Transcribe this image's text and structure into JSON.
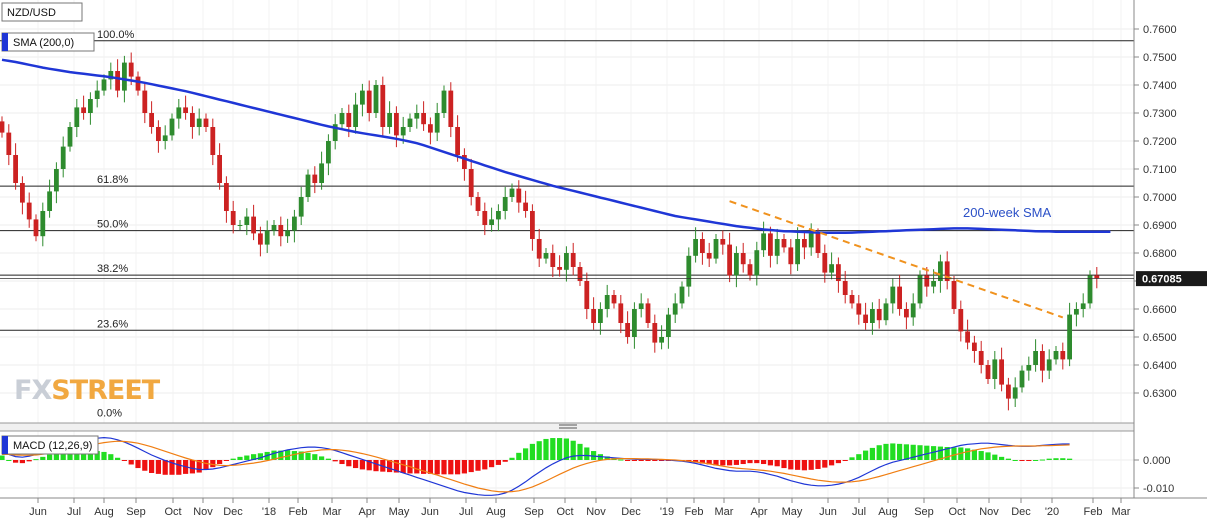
{
  "chart_data": {
    "type": "candlestick",
    "symbol": "NZD/USD",
    "sma_label": "SMA (200,0)",
    "sma_annotation": "200-week SMA",
    "macd_label": "MACD (12,26,9)",
    "current_price": "0.67085",
    "brand": "FXSTREET",
    "price_axis": {
      "ylim": [
        0.62,
        0.765
      ],
      "ticks": [
        "0.7600",
        "0.7500",
        "0.7400",
        "0.7300",
        "0.7200",
        "0.7100",
        "0.7000",
        "0.6900",
        "0.6800",
        "0.6700",
        "0.6600",
        "0.6500",
        "0.6400",
        "0.6300"
      ]
    },
    "macd_axis": {
      "ylim": [
        -0.014,
        0.01
      ],
      "ticks": [
        "0.000",
        "-0.010"
      ]
    },
    "x_ticks": [
      "Jun",
      "Jul",
      "Aug",
      "Sep",
      "Oct",
      "Nov",
      "Dec",
      "'18",
      "Feb",
      "Mar",
      "Apr",
      "May",
      "Jun",
      "Jul",
      "Aug",
      "Sep",
      "Oct",
      "Nov",
      "Dec",
      "'19",
      "Feb",
      "Mar",
      "Apr",
      "May",
      "Jun",
      "Jul",
      "Aug",
      "Sep",
      "Oct",
      "Nov",
      "Dec",
      "'20",
      "Feb",
      "Mar"
    ],
    "fib_levels": [
      {
        "label": "100.0%",
        "value": 0.7558
      },
      {
        "label": "61.8%",
        "value": 0.7039
      },
      {
        "label": "50.0%",
        "value": 0.688
      },
      {
        "label": "38.2%",
        "value": 0.6721
      },
      {
        "label": "23.6%",
        "value": 0.6524
      },
      {
        "label": "0.0%",
        "value": 0.6206
      }
    ],
    "trendline": {
      "from": {
        "week": 107,
        "value": 0.6985
      },
      "to": {
        "week": 156,
        "value": 0.657
      }
    },
    "closes": [
      0.723,
      0.715,
      0.705,
      0.698,
      0.692,
      0.686,
      0.695,
      0.702,
      0.71,
      0.718,
      0.725,
      0.732,
      0.73,
      0.735,
      0.738,
      0.742,
      0.745,
      0.738,
      0.748,
      0.743,
      0.738,
      0.73,
      0.725,
      0.72,
      0.722,
      0.728,
      0.732,
      0.73,
      0.725,
      0.728,
      0.725,
      0.715,
      0.705,
      0.695,
      0.69,
      0.69,
      0.693,
      0.687,
      0.683,
      0.688,
      0.69,
      0.686,
      0.688,
      0.693,
      0.7,
      0.708,
      0.705,
      0.712,
      0.72,
      0.726,
      0.73,
      0.725,
      0.733,
      0.738,
      0.73,
      0.74,
      0.725,
      0.73,
      0.722,
      0.725,
      0.728,
      0.73,
      0.726,
      0.723,
      0.73,
      0.738,
      0.725,
      0.715,
      0.71,
      0.7,
      0.695,
      0.69,
      0.692,
      0.695,
      0.7,
      0.703,
      0.698,
      0.695,
      0.685,
      0.678,
      0.68,
      0.675,
      0.674,
      0.68,
      0.675,
      0.67,
      0.66,
      0.655,
      0.66,
      0.665,
      0.662,
      0.655,
      0.65,
      0.66,
      0.662,
      0.655,
      0.648,
      0.65,
      0.658,
      0.662,
      0.668,
      0.679,
      0.685,
      0.68,
      0.678,
      0.685,
      0.683,
      0.672,
      0.68,
      0.676,
      0.672,
      0.681,
      0.687,
      0.679,
      0.685,
      0.682,
      0.676,
      0.685,
      0.682,
      0.687,
      0.68,
      0.673,
      0.676,
      0.67,
      0.665,
      0.662,
      0.658,
      0.655,
      0.66,
      0.656,
      0.662,
      0.668,
      0.66,
      0.657,
      0.662,
      0.672,
      0.668,
      0.67,
      0.677,
      0.67,
      0.66,
      0.652,
      0.648,
      0.645,
      0.64,
      0.635,
      0.642,
      0.633,
      0.628,
      0.632,
      0.638,
      0.64,
      0.645,
      0.638,
      0.642,
      0.645,
      0.642,
      0.658,
      0.66,
      0.662,
      0.672,
      0.671
    ],
    "sma200": [
      0.749,
      0.7486,
      0.7482,
      0.7477,
      0.7472,
      0.7467,
      0.7462,
      0.7458,
      0.7454,
      0.745,
      0.7446,
      0.7443,
      0.744,
      0.7437,
      0.7434,
      0.7431,
      0.7428,
      0.7424,
      0.742,
      0.7416,
      0.7412,
      0.7408,
      0.7403,
      0.7398,
      0.7393,
      0.7388,
      0.7383,
      0.7378,
      0.7372,
      0.7366,
      0.736,
      0.7354,
      0.7348,
      0.7342,
      0.7336,
      0.733,
      0.7324,
      0.7318,
      0.7312,
      0.7306,
      0.73,
      0.7294,
      0.7288,
      0.7282,
      0.7276,
      0.727,
      0.7264,
      0.7258,
      0.7252,
      0.7247,
      0.7242,
      0.7237,
      0.7232,
      0.7228,
      0.7224,
      0.722,
      0.7216,
      0.7212,
      0.7208,
      0.7203,
      0.7198,
      0.7192,
      0.7185,
      0.7177,
      0.7169,
      0.7161,
      0.7153,
      0.7145,
      0.7137,
      0.7129,
      0.7121,
      0.7113,
      0.7105,
      0.7097,
      0.7089,
      0.7082,
      0.7075,
      0.7068,
      0.7061,
      0.7054,
      0.7047,
      0.704,
      0.7034,
      0.7028,
      0.7022,
      0.7016,
      0.701,
      0.7004,
      0.6998,
      0.6992,
      0.6986,
      0.698,
      0.6974,
      0.6968,
      0.6962,
      0.6956,
      0.695,
      0.6944,
      0.6938,
      0.6932,
      0.6928,
      0.6924,
      0.692,
      0.6916,
      0.6912,
      0.6908,
      0.6904,
      0.69,
      0.6896,
      0.6893,
      0.689,
      0.6887,
      0.6884,
      0.6882,
      0.688,
      0.6878,
      0.6877,
      0.6876,
      0.6875,
      0.6874,
      0.6873,
      0.6872,
      0.6872,
      0.6872,
      0.6872,
      0.6873,
      0.6874,
      0.6875,
      0.6876,
      0.6877,
      0.6878,
      0.6879,
      0.688,
      0.6881,
      0.6882,
      0.6883,
      0.6884,
      0.6885,
      0.6886,
      0.6887,
      0.6888,
      0.6888,
      0.6888,
      0.6887,
      0.6886,
      0.6885,
      0.6884,
      0.6883,
      0.6882,
      0.6881,
      0.688,
      0.6879,
      0.6878,
      0.6877,
      0.6877,
      0.6876,
      0.6876,
      0.6876,
      0.6876,
      0.6876,
      0.6876,
      0.6876,
      0.6876,
      0.6876
    ],
    "macd_line": [
      0.003,
      0.002,
      0.0012,
      0.001,
      0.0014,
      0.002,
      0.0028,
      0.0036,
      0.0044,
      0.0052,
      0.006,
      0.0066,
      0.007,
      0.0074,
      0.0078,
      0.008,
      0.0078,
      0.0072,
      0.0064,
      0.0054,
      0.0042,
      0.003,
      0.0018,
      0.0008,
      -0.0002,
      -0.001,
      -0.0018,
      -0.0024,
      -0.003,
      -0.0034,
      -0.0034,
      -0.0032,
      -0.0028,
      -0.0022,
      -0.0016,
      -0.001,
      -0.0004,
      0.0002,
      0.0008,
      0.0016,
      0.0024,
      0.003,
      0.0036,
      0.004,
      0.0044,
      0.0046,
      0.0046,
      0.0044,
      0.004,
      0.0034,
      0.0026,
      0.0018,
      0.001,
      0.0002,
      -0.0006,
      -0.0014,
      -0.0022,
      -0.003,
      -0.0038,
      -0.0046,
      -0.0054,
      -0.0062,
      -0.007,
      -0.0078,
      -0.0086,
      -0.0094,
      -0.0102,
      -0.011,
      -0.0116,
      -0.012,
      -0.0124,
      -0.0126,
      -0.0126,
      -0.0124,
      -0.0118,
      -0.0108,
      -0.0094,
      -0.0078,
      -0.006,
      -0.0044,
      -0.0028,
      -0.0014,
      -0.0002,
      0.0008,
      0.0014,
      0.0016,
      0.0016,
      0.0014,
      0.0012,
      0.001,
      0.0008,
      0.0006,
      0.0004,
      0.0003,
      0.0002,
      0.0002,
      0.0002,
      0.0001,
      0.0,
      -0.0002,
      -0.0004,
      -0.0008,
      -0.0012,
      -0.0018,
      -0.0024,
      -0.003,
      -0.0034,
      -0.0038,
      -0.004,
      -0.004,
      -0.004,
      -0.0042,
      -0.0046,
      -0.0052,
      -0.0058,
      -0.0066,
      -0.0074,
      -0.008,
      -0.0086,
      -0.009,
      -0.0092,
      -0.0092,
      -0.009,
      -0.0086,
      -0.008,
      -0.0072,
      -0.0062,
      -0.005,
      -0.0038,
      -0.0026,
      -0.0016,
      -0.0008,
      -0.0002,
      0.0004,
      0.001,
      0.0016,
      0.0022,
      0.0028,
      0.0034,
      0.004,
      0.0046,
      0.0052,
      0.0056,
      0.0058,
      0.006,
      0.006,
      0.0058,
      0.0055,
      0.0052,
      0.005,
      0.0049,
      0.0049,
      0.005,
      0.0052,
      0.0054,
      0.0056,
      0.0057,
      0.0057
    ],
    "signal_line": [
      0.002,
      0.002,
      0.0018,
      0.0017,
      0.0017,
      0.0018,
      0.0021,
      0.0024,
      0.0028,
      0.0033,
      0.0038,
      0.0044,
      0.0049,
      0.0054,
      0.0058,
      0.0062,
      0.0065,
      0.0067,
      0.0066,
      0.0064,
      0.006,
      0.0054,
      0.0047,
      0.0039,
      0.0031,
      0.0023,
      0.0015,
      0.0007,
      0.0,
      -0.0006,
      -0.0012,
      -0.0016,
      -0.0019,
      -0.002,
      -0.0019,
      -0.0017,
      -0.0014,
      -0.0011,
      -0.0007,
      -0.0002,
      0.0003,
      0.0009,
      0.0014,
      0.002,
      0.0025,
      0.003,
      0.0033,
      0.0036,
      0.0037,
      0.0037,
      0.0035,
      0.0032,
      0.0028,
      0.0023,
      0.0017,
      0.0011,
      0.0004,
      -0.0003,
      -0.001,
      -0.0017,
      -0.0024,
      -0.0032,
      -0.0039,
      -0.0047,
      -0.0054,
      -0.0062,
      -0.007,
      -0.0078,
      -0.0086,
      -0.0093,
      -0.01,
      -0.0105,
      -0.011,
      -0.0113,
      -0.0114,
      -0.0113,
      -0.011,
      -0.0104,
      -0.0096,
      -0.0086,
      -0.0075,
      -0.0063,
      -0.0051,
      -0.004,
      -0.0029,
      -0.002,
      -0.0012,
      -0.0006,
      -0.0001,
      0.0002,
      0.0004,
      0.0005,
      0.0005,
      0.0005,
      0.0004,
      0.0004,
      0.0003,
      0.0002,
      0.0001,
      0.0,
      -0.0002,
      -0.0004,
      -0.0007,
      -0.001,
      -0.0014,
      -0.0018,
      -0.0022,
      -0.0026,
      -0.0029,
      -0.0031,
      -0.0033,
      -0.0035,
      -0.0037,
      -0.004,
      -0.0044,
      -0.0048,
      -0.0053,
      -0.0058,
      -0.0063,
      -0.0068,
      -0.0072,
      -0.0075,
      -0.0078,
      -0.0079,
      -0.0079,
      -0.0078,
      -0.0075,
      -0.0071,
      -0.0065,
      -0.0059,
      -0.0052,
      -0.0045,
      -0.0038,
      -0.0031,
      -0.0024,
      -0.0017,
      -0.001,
      -0.0003,
      0.0004,
      0.0011,
      0.0018,
      0.0024,
      0.003,
      0.0035,
      0.004,
      0.0043,
      0.0046,
      0.0048,
      0.0049,
      0.005,
      0.005,
      0.005,
      0.005,
      0.0051,
      0.0051,
      0.0052,
      0.0053,
      0.0054
    ],
    "colors": {
      "bull": "#2e8b2e",
      "bear": "#cc2222",
      "sma": "#1f36d6",
      "trend": "#f0921e",
      "fib": "#222222",
      "macd_line": "#1f36d6",
      "signal_line": "#f07e12",
      "hist_pos": "#22dd22",
      "hist_neg": "#ee1111",
      "annotation": "#2b50c7",
      "logo_fx": "#c9ced6",
      "logo_street": "#f1a840"
    }
  }
}
